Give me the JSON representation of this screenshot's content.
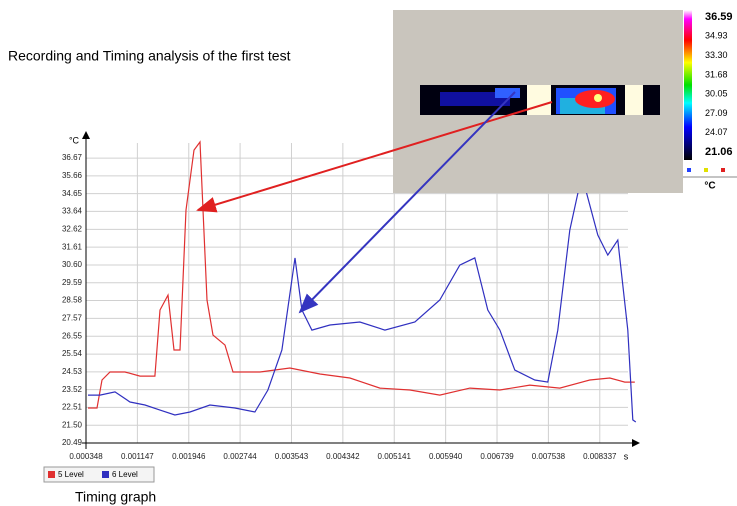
{
  "heading": "Recording and Timing analysis of the first test",
  "caption": "Timing graph",
  "chart_data": {
    "type": "line",
    "y_unit": "°C",
    "x_unit": "s",
    "xlim": [
      0.000348,
      0.0089
    ],
    "ylim": [
      20.49,
      37.98
    ],
    "xticks": [
      0.000348,
      0.001147,
      0.001946,
      0.002744,
      0.003543,
      0.004342,
      0.005141,
      {
        "value": 0.00594,
        "label": "0.005940"
      },
      0.006739,
      0.007538,
      0.008337
    ],
    "yticks": [
      20.49,
      {
        "value": 21.5,
        "label": "21.50"
      },
      22.51,
      23.52,
      24.53,
      25.54,
      26.55,
      27.57,
      28.58,
      29.59,
      {
        "value": 30.6,
        "label": "30.60"
      },
      31.61,
      32.62,
      33.64,
      34.65,
      35.66,
      36.67
    ],
    "grid": true,
    "series": [
      {
        "name": "5 Level",
        "color": "#e03030",
        "x": [
          0.000379,
          0.000519,
          0.000597,
          0.000721,
          0.000954,
          0.001187,
          0.00142,
          0.001498,
          0.001623,
          0.001716,
          0.001809,
          0.001903,
          0.002027,
          0.00212,
          0.002229,
          0.002322,
          0.002509,
          0.002633,
          0.003053,
          0.003519,
          0.003985,
          0.004451,
          0.004918,
          0.005384,
          0.00585,
          0.006317,
          0.006783,
          0.007249,
          0.007715,
          0.008182,
          0.008493,
          0.008726,
          0.008881
        ],
        "values": [
          22.48,
          22.48,
          24.07,
          24.52,
          24.52,
          24.29,
          24.29,
          28.04,
          28.89,
          25.77,
          25.77,
          33.72,
          37.12,
          37.58,
          28.61,
          26.62,
          26.05,
          24.52,
          24.52,
          24.75,
          24.41,
          24.18,
          23.61,
          23.5,
          23.21,
          23.61,
          23.5,
          23.78,
          23.61,
          24.07,
          24.18,
          23.95,
          23.95
        ]
      },
      {
        "name": "6 Level",
        "color": "#3030c0",
        "x": [
          0.000379,
          0.000566,
          0.000799,
          0.001032,
          0.001265,
          0.001498,
          0.001731,
          0.001965,
          0.002275,
          0.002664,
          0.002975,
          0.003177,
          0.003394,
          0.003597,
          0.003705,
          0.003861,
          0.00414,
          0.004607,
          0.004995,
          0.005462,
          0.00585,
          0.006161,
          0.006394,
          0.006596,
          0.006783,
          0.007016,
          0.007327,
          0.007529,
          0.007684,
          0.007871,
          0.008057,
          0.008306,
          0.008461,
          0.008617,
          0.008772,
          0.00885,
          0.008897
        ],
        "values": [
          23.21,
          23.21,
          23.39,
          22.82,
          22.65,
          22.36,
          22.08,
          22.25,
          22.65,
          22.48,
          22.25,
          23.5,
          25.77,
          31.0,
          28.04,
          26.9,
          27.19,
          27.36,
          26.9,
          27.36,
          28.61,
          30.59,
          31.0,
          28.04,
          26.9,
          24.63,
          24.07,
          23.95,
          26.9,
          32.58,
          35.7,
          32.3,
          31.16,
          32.01,
          26.9,
          21.8,
          21.68
        ]
      }
    ]
  },
  "thermal_inset": {
    "scale_labels": [
      "36.59",
      "34.93",
      "33.30",
      "31.68",
      "30.05",
      "27.09",
      "24.07",
      "21.06"
    ],
    "unit": "°C"
  }
}
